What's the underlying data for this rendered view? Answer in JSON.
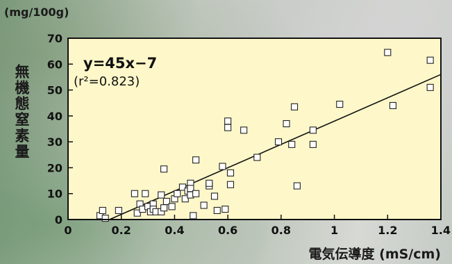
{
  "chart_data": {
    "type": "scatter",
    "unit_label": "(mg/100g)",
    "ylabel": "無機態窒素量",
    "xlabel": "電気伝導度 (mS/cm)",
    "equation": "y=45x−7",
    "r2_label": "(r²=0.823)",
    "xlim": [
      0,
      1.4
    ],
    "ylim": [
      0,
      70
    ],
    "xticks": [
      "0",
      "0.2",
      "0.4",
      "0.6",
      "0.8",
      "1",
      "1.2",
      "1.4"
    ],
    "yticks": [
      "0",
      "10",
      "20",
      "30",
      "40",
      "50",
      "60",
      "70"
    ],
    "plot_bg": "#fdf7c9",
    "marker": "open-square",
    "trendline": {
      "slope": 45,
      "intercept": -7
    },
    "points": [
      [
        0.12,
        1.5
      ],
      [
        0.13,
        3.5
      ],
      [
        0.14,
        0.5
      ],
      [
        0.19,
        3.5
      ],
      [
        0.25,
        10
      ],
      [
        0.26,
        2.5
      ],
      [
        0.27,
        6
      ],
      [
        0.28,
        4
      ],
      [
        0.29,
        10
      ],
      [
        0.3,
        5
      ],
      [
        0.31,
        3
      ],
      [
        0.32,
        6
      ],
      [
        0.32,
        4
      ],
      [
        0.33,
        3
      ],
      [
        0.35,
        9.5
      ],
      [
        0.35,
        3
      ],
      [
        0.36,
        19.5
      ],
      [
        0.36,
        4.5
      ],
      [
        0.37,
        7
      ],
      [
        0.39,
        5
      ],
      [
        0.4,
        8
      ],
      [
        0.41,
        10
      ],
      [
        0.43,
        12.5
      ],
      [
        0.44,
        8
      ],
      [
        0.45,
        11
      ],
      [
        0.46,
        14
      ],
      [
        0.46,
        9.5
      ],
      [
        0.46,
        12
      ],
      [
        0.47,
        1.5
      ],
      [
        0.48,
        10
      ],
      [
        0.48,
        23
      ],
      [
        0.51,
        5.5
      ],
      [
        0.53,
        13
      ],
      [
        0.53,
        14
      ],
      [
        0.55,
        9
      ],
      [
        0.56,
        3.5
      ],
      [
        0.58,
        20.5
      ],
      [
        0.59,
        4
      ],
      [
        0.6,
        38
      ],
      [
        0.6,
        35.5
      ],
      [
        0.61,
        18
      ],
      [
        0.61,
        13.5
      ],
      [
        0.66,
        34.5
      ],
      [
        0.71,
        24
      ],
      [
        0.79,
        30
      ],
      [
        0.82,
        37
      ],
      [
        0.84,
        29
      ],
      [
        0.85,
        43.5
      ],
      [
        0.86,
        13
      ],
      [
        0.92,
        34.5
      ],
      [
        0.92,
        29
      ],
      [
        1.02,
        44.5
      ],
      [
        1.2,
        64.5
      ],
      [
        1.22,
        44
      ],
      [
        1.36,
        61.5
      ],
      [
        1.36,
        51
      ]
    ]
  },
  "colors": {
    "plot_background": "#fdf7c9",
    "ink": "#111111"
  }
}
